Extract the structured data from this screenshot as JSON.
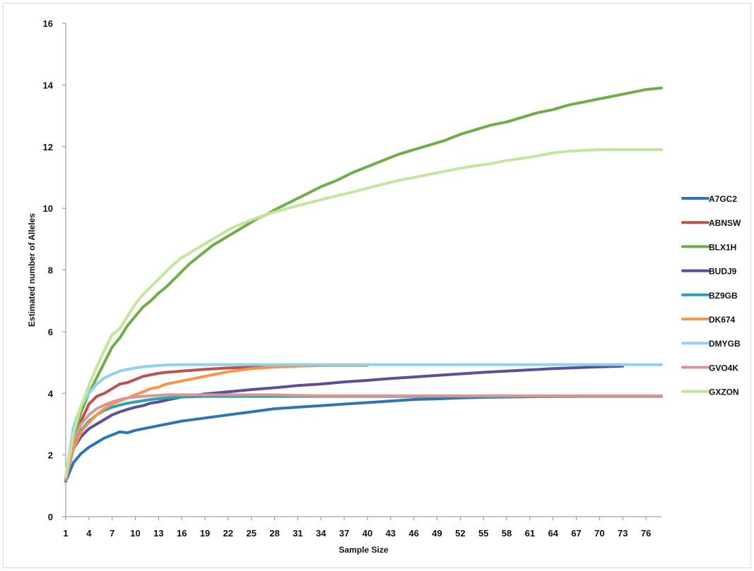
{
  "chart_data": {
    "type": "line",
    "title": "",
    "xlabel": "Sample Size",
    "ylabel": "Estimated number of Alleles",
    "xlim": [
      1,
      78
    ],
    "ylim": [
      0,
      16
    ],
    "yticks": [
      0,
      2,
      4,
      6,
      8,
      10,
      12,
      14,
      16
    ],
    "xticks": [
      1,
      4,
      7,
      10,
      13,
      16,
      19,
      22,
      25,
      28,
      31,
      34,
      37,
      40,
      43,
      46,
      49,
      52,
      55,
      58,
      61,
      64,
      67,
      70,
      73,
      76
    ],
    "grid": false,
    "legend_position": "right",
    "series": [
      {
        "name": "A7GC2",
        "color": "#2e75b6",
        "x": [
          1,
          2,
          3,
          4,
          5,
          6,
          7,
          8,
          9,
          10,
          12,
          14,
          16,
          19,
          22,
          25,
          28,
          31,
          34,
          37,
          40,
          43,
          46,
          49,
          52,
          55,
          58,
          61,
          64,
          67
        ],
        "y": [
          1.15,
          1.75,
          2.05,
          2.25,
          2.4,
          2.55,
          2.65,
          2.75,
          2.72,
          2.8,
          2.9,
          3.0,
          3.1,
          3.2,
          3.3,
          3.4,
          3.5,
          3.55,
          3.6,
          3.65,
          3.7,
          3.75,
          3.8,
          3.82,
          3.85,
          3.87,
          3.88,
          3.89,
          3.9,
          3.9
        ]
      },
      {
        "name": "ABNSW",
        "color": "#c0504d",
        "x": [
          1,
          2,
          3,
          4,
          5,
          6,
          7,
          8,
          9,
          10,
          11,
          12,
          13,
          14,
          16,
          19,
          22,
          25,
          28,
          31,
          34
        ],
        "y": [
          1.2,
          2.4,
          3.1,
          3.65,
          3.9,
          4.0,
          4.15,
          4.3,
          4.35,
          4.45,
          4.55,
          4.6,
          4.65,
          4.68,
          4.72,
          4.78,
          4.82,
          4.85,
          4.88,
          4.9,
          4.9
        ]
      },
      {
        "name": "BLX1H",
        "color": "#70ad47",
        "x": [
          1,
          2,
          3,
          4,
          5,
          6,
          7,
          8,
          9,
          10,
          11,
          12,
          13,
          14,
          15,
          16,
          17,
          18,
          19,
          20,
          21,
          22,
          23,
          24,
          25,
          26,
          27,
          28,
          30,
          32,
          34,
          36,
          38,
          40,
          42,
          44,
          46,
          48,
          50,
          52,
          54,
          56,
          58,
          60,
          62,
          64,
          66,
          68,
          70,
          72,
          74,
          76,
          78
        ],
        "y": [
          1.3,
          2.5,
          3.4,
          4.0,
          4.5,
          5.0,
          5.5,
          5.8,
          6.2,
          6.5,
          6.8,
          7.0,
          7.25,
          7.45,
          7.7,
          7.95,
          8.2,
          8.4,
          8.6,
          8.8,
          8.95,
          9.1,
          9.25,
          9.4,
          9.55,
          9.7,
          9.8,
          9.95,
          10.2,
          10.45,
          10.7,
          10.9,
          11.15,
          11.35,
          11.55,
          11.75,
          11.9,
          12.05,
          12.2,
          12.4,
          12.55,
          12.7,
          12.8,
          12.95,
          13.1,
          13.2,
          13.35,
          13.45,
          13.55,
          13.65,
          13.75,
          13.85,
          13.9
        ]
      },
      {
        "name": "BUDJ9",
        "color": "#5b4f9a",
        "x": [
          1,
          2,
          3,
          4,
          5,
          6,
          7,
          8,
          9,
          10,
          11,
          12,
          13,
          14,
          16,
          19,
          22,
          25,
          28,
          31,
          34,
          37,
          40,
          43,
          46,
          49,
          52,
          55,
          58,
          61,
          64,
          67,
          70,
          73
        ],
        "y": [
          1.2,
          2.2,
          2.6,
          2.85,
          3.0,
          3.15,
          3.3,
          3.4,
          3.48,
          3.55,
          3.6,
          3.68,
          3.72,
          3.78,
          3.88,
          3.98,
          4.05,
          4.12,
          4.18,
          4.25,
          4.3,
          4.37,
          4.42,
          4.48,
          4.53,
          4.58,
          4.63,
          4.68,
          4.72,
          4.76,
          4.8,
          4.83,
          4.86,
          4.88
        ]
      },
      {
        "name": "BZ9GB",
        "color": "#2aa2b4",
        "x": [
          1,
          2,
          3,
          4,
          5,
          6,
          7,
          8,
          9,
          10,
          11,
          12,
          14,
          16,
          19,
          22,
          25,
          28,
          31,
          34,
          40,
          46,
          52,
          58,
          64,
          70,
          76,
          78
        ],
        "y": [
          1.2,
          2.3,
          2.8,
          3.1,
          3.3,
          3.45,
          3.55,
          3.62,
          3.68,
          3.72,
          3.76,
          3.8,
          3.85,
          3.88,
          3.9,
          3.9,
          3.9,
          3.9,
          3.9,
          3.9,
          3.9,
          3.9,
          3.9,
          3.9,
          3.9,
          3.9,
          3.9,
          3.9
        ]
      },
      {
        "name": "DK674",
        "color": "#f79646",
        "x": [
          1,
          2,
          3,
          4,
          5,
          6,
          7,
          8,
          9,
          10,
          11,
          12,
          13,
          14,
          16,
          19,
          22,
          25,
          28,
          31,
          34,
          37,
          40
        ],
        "y": [
          1.2,
          2.2,
          2.75,
          3.05,
          3.3,
          3.5,
          3.65,
          3.75,
          3.85,
          3.95,
          4.05,
          4.15,
          4.2,
          4.3,
          4.4,
          4.55,
          4.7,
          4.8,
          4.85,
          4.88,
          4.9,
          4.9,
          4.9
        ]
      },
      {
        "name": "DMYGB",
        "color": "#8dd3f0",
        "x": [
          1,
          2,
          3,
          4,
          5,
          6,
          7,
          8,
          9,
          10,
          11,
          12,
          13,
          14,
          16,
          19,
          22,
          25,
          28,
          31,
          34,
          40,
          46,
          52,
          58,
          64,
          70,
          76,
          78
        ],
        "y": [
          1.3,
          2.9,
          3.6,
          4.0,
          4.3,
          4.5,
          4.62,
          4.72,
          4.78,
          4.82,
          4.86,
          4.88,
          4.9,
          4.92,
          4.93,
          4.93,
          4.93,
          4.93,
          4.93,
          4.93,
          4.93,
          4.93,
          4.93,
          4.93,
          4.93,
          4.93,
          4.93,
          4.93,
          4.93
        ]
      },
      {
        "name": "GVO4K",
        "color": "#d99694",
        "x": [
          1,
          2,
          3,
          4,
          5,
          6,
          7,
          8,
          9,
          10,
          11,
          12,
          13,
          14,
          16,
          19,
          22,
          25,
          28,
          31,
          34,
          40,
          46,
          52,
          58,
          64,
          70,
          76,
          78
        ],
        "y": [
          1.2,
          2.45,
          3.0,
          3.3,
          3.5,
          3.62,
          3.72,
          3.8,
          3.85,
          3.88,
          3.9,
          3.92,
          3.93,
          3.95,
          3.95,
          3.95,
          3.95,
          3.95,
          3.95,
          3.93,
          3.92,
          3.92,
          3.92,
          3.92,
          3.92,
          3.92,
          3.92,
          3.92,
          3.92
        ]
      },
      {
        "name": "GXZON",
        "color": "#c4e59b",
        "x": [
          1,
          2,
          3,
          4,
          5,
          6,
          7,
          8,
          9,
          10,
          11,
          12,
          13,
          14,
          15,
          16,
          17,
          18,
          19,
          20,
          21,
          22,
          23,
          24,
          25,
          26,
          27,
          28,
          30,
          32,
          34,
          36,
          38,
          40,
          42,
          44,
          46,
          48,
          50,
          52,
          54,
          56,
          58,
          60,
          62,
          64,
          66,
          68,
          70,
          72,
          74,
          76,
          78
        ],
        "y": [
          1.3,
          2.7,
          3.6,
          4.25,
          4.85,
          5.4,
          5.9,
          6.1,
          6.5,
          6.9,
          7.2,
          7.45,
          7.7,
          7.95,
          8.2,
          8.4,
          8.55,
          8.7,
          8.85,
          9.0,
          9.15,
          9.3,
          9.42,
          9.52,
          9.62,
          9.72,
          9.8,
          9.88,
          10.02,
          10.15,
          10.28,
          10.4,
          10.52,
          10.65,
          10.78,
          10.9,
          11.0,
          11.1,
          11.2,
          11.3,
          11.38,
          11.45,
          11.55,
          11.62,
          11.7,
          11.8,
          11.85,
          11.88,
          11.9,
          11.9,
          11.9,
          11.9,
          11.9
        ]
      }
    ]
  }
}
